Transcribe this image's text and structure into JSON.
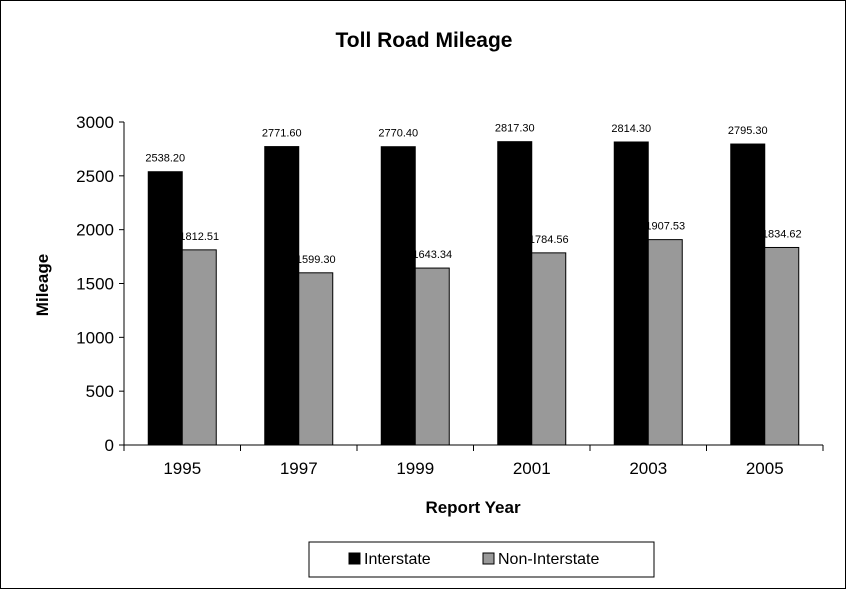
{
  "chart_data": {
    "type": "bar",
    "title": "Toll Road Mileage",
    "xlabel": "Report Year",
    "ylabel": "Mileage",
    "categories": [
      "1995",
      "1997",
      "1999",
      "2001",
      "2003",
      "2005"
    ],
    "ylim": [
      0,
      3000
    ],
    "yticks": [
      "0",
      "500",
      "1000",
      "1500",
      "2000",
      "2500",
      "3000"
    ],
    "grid": false,
    "legend_position": "bottom",
    "series": [
      {
        "name": "Interstate",
        "color": "#000000",
        "values": [
          2538.2,
          2771.6,
          2770.4,
          2817.3,
          2814.3,
          2795.3
        ],
        "labels": [
          "2538.20",
          "2771.60",
          "2770.40",
          "2817.30",
          "2814.30",
          "2795.30"
        ]
      },
      {
        "name": "Non-Interstate",
        "color": "#999999",
        "values": [
          1812.51,
          1599.3,
          1643.34,
          1784.56,
          1907.53,
          1834.62
        ],
        "labels": [
          "1812.51",
          "1599.30",
          "1643.34",
          "1784.56",
          "1907.53",
          "1834.62"
        ]
      }
    ]
  }
}
